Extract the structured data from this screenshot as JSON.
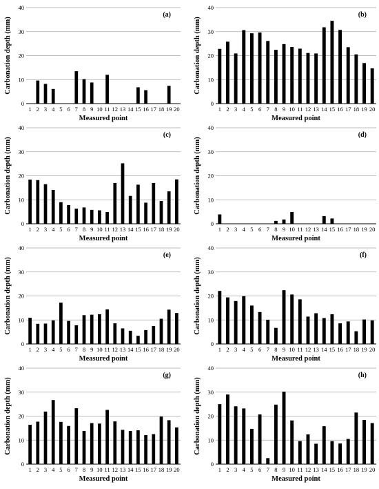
{
  "chart_data": [
    {
      "type": "bar",
      "label": "(a)",
      "xlabel": "Measured point",
      "ylabel": "Carbonation depth (mm)",
      "ylim": [
        0,
        40
      ],
      "yticks": [
        0,
        10,
        20,
        30,
        40
      ],
      "grid": true,
      "categories": [
        "1",
        "2",
        "3",
        "4",
        "5",
        "6",
        "7",
        "8",
        "9",
        "10",
        "11",
        "12",
        "13",
        "14",
        "15",
        "16",
        "17",
        "18",
        "19",
        "20"
      ],
      "values": [
        0,
        9.6,
        8.2,
        6.1,
        0,
        0,
        13.5,
        10.2,
        8.8,
        0,
        12,
        0,
        0,
        0,
        6.8,
        5.6,
        0,
        0,
        7.4,
        0
      ]
    },
    {
      "type": "bar",
      "label": "(b)",
      "xlabel": "Measured point",
      "ylabel": "Carbonation depth (mm)",
      "ylim": [
        0,
        40
      ],
      "yticks": [
        0,
        10,
        20,
        30,
        40
      ],
      "grid": true,
      "categories": [
        "1",
        "2",
        "3",
        "4",
        "5",
        "6",
        "7",
        "8",
        "9",
        "10",
        "11",
        "12",
        "13",
        "14",
        "15",
        "16",
        "17",
        "18",
        "19",
        "20"
      ],
      "values": [
        22.8,
        25.8,
        20.9,
        30.6,
        29.3,
        29.6,
        26.1,
        22.4,
        24.8,
        23.6,
        22.9,
        21.1,
        20.9,
        31.8,
        34.5,
        30.7,
        23.5,
        20.5,
        16.9,
        14.7
      ]
    },
    {
      "type": "bar",
      "label": "(c)",
      "xlabel": "Measured point",
      "ylabel": "Carbonation depth (mm)",
      "ylim": [
        0,
        40
      ],
      "yticks": [
        0,
        10,
        20,
        30,
        40
      ],
      "grid": true,
      "categories": [
        "1",
        "2",
        "3",
        "4",
        "5",
        "6",
        "7",
        "8",
        "9",
        "10",
        "11",
        "12",
        "13",
        "14",
        "15",
        "16",
        "17",
        "18",
        "19",
        "20"
      ],
      "values": [
        18.4,
        18.2,
        16.5,
        14.1,
        9,
        7.8,
        6.3,
        6.8,
        5.8,
        5.6,
        4.9,
        17,
        25.2,
        11.6,
        16.3,
        8.8,
        17,
        9.5,
        13.5,
        18.5
      ]
    },
    {
      "type": "bar",
      "label": "(d)",
      "xlabel": "Measured point",
      "ylabel": "Carbonation depth (mm)",
      "ylim": [
        0,
        40
      ],
      "yticks": [
        0,
        10,
        20,
        30,
        40
      ],
      "grid": true,
      "categories": [
        "1",
        "2",
        "3",
        "4",
        "5",
        "6",
        "7",
        "8",
        "9",
        "10",
        "11",
        "12",
        "13",
        "14",
        "15",
        "16",
        "17",
        "18",
        "19",
        "20"
      ],
      "values": [
        3.9,
        0,
        0,
        0,
        0,
        0,
        0,
        1.2,
        1.8,
        4.9,
        0,
        0,
        0,
        3.2,
        2.2,
        0,
        0,
        0,
        0,
        0
      ]
    },
    {
      "type": "bar",
      "label": "(e)",
      "xlabel": "Measured point",
      "ylabel": "Carbonation depth (mm)",
      "ylim": [
        0,
        40
      ],
      "yticks": [
        0,
        10,
        20,
        30,
        40
      ],
      "grid": true,
      "categories": [
        "1",
        "2",
        "3",
        "4",
        "5",
        "6",
        "7",
        "8",
        "9",
        "10",
        "11",
        "12",
        "13",
        "14",
        "15",
        "16",
        "17",
        "18",
        "19",
        "20"
      ],
      "values": [
        10.9,
        8.4,
        8.5,
        9.8,
        17.2,
        9.6,
        7.8,
        12,
        12.2,
        12.4,
        14.4,
        8.6,
        6.5,
        5.5,
        3.4,
        5.8,
        7.5,
        10.5,
        14.3,
        12.9
      ]
    },
    {
      "type": "bar",
      "label": "(f)",
      "xlabel": "Measured point",
      "ylabel": "Carbonation depth (mm)",
      "ylim": [
        0,
        40
      ],
      "yticks": [
        0,
        10,
        20,
        30,
        40
      ],
      "grid": true,
      "categories": [
        "1",
        "2",
        "3",
        "4",
        "5",
        "6",
        "7",
        "8",
        "9",
        "10",
        "11",
        "12",
        "13",
        "14",
        "15",
        "16",
        "17",
        "18",
        "19",
        "20"
      ],
      "values": [
        22.1,
        19.4,
        17.9,
        19.9,
        16,
        13.3,
        10.1,
        6.7,
        22.4,
        20.6,
        18.6,
        11.4,
        12.8,
        10.8,
        12.4,
        8.6,
        9.4,
        5.3,
        10.2,
        9.8
      ]
    },
    {
      "type": "bar",
      "label": "(g)",
      "xlabel": "Measured point",
      "ylabel": "Carbonation depth (mm)",
      "ylim": [
        0,
        40
      ],
      "yticks": [
        0,
        10,
        20,
        30,
        40
      ],
      "grid": true,
      "categories": [
        "1",
        "2",
        "3",
        "4",
        "5",
        "6",
        "7",
        "8",
        "9",
        "10",
        "11",
        "12",
        "13",
        "14",
        "15",
        "16",
        "17",
        "18",
        "19",
        "20"
      ],
      "values": [
        16.4,
        17.7,
        21.9,
        26.7,
        17.6,
        15.9,
        23.3,
        13.8,
        17.1,
        16.9,
        22.6,
        17.8,
        14.3,
        13.8,
        14.1,
        12.1,
        12.5,
        19.8,
        18.3,
        15.3
      ]
    },
    {
      "type": "bar",
      "label": "(h)",
      "xlabel": "Measured point",
      "ylabel": "Carbonation depth (mm)",
      "ylim": [
        0,
        40
      ],
      "yticks": [
        0,
        10,
        20,
        30,
        40
      ],
      "grid": true,
      "categories": [
        "1",
        "2",
        "3",
        "4",
        "5",
        "6",
        "7",
        "8",
        "9",
        "10",
        "11",
        "12",
        "13",
        "14",
        "15",
        "16",
        "17",
        "18",
        "19",
        "20"
      ],
      "values": [
        25,
        29,
        24.1,
        23.2,
        14.7,
        20.7,
        2.5,
        24.8,
        30.2,
        18.2,
        9.6,
        12.4,
        8.5,
        15.8,
        9.6,
        8.6,
        10.5,
        21.5,
        18.4,
        17.1
      ]
    }
  ]
}
